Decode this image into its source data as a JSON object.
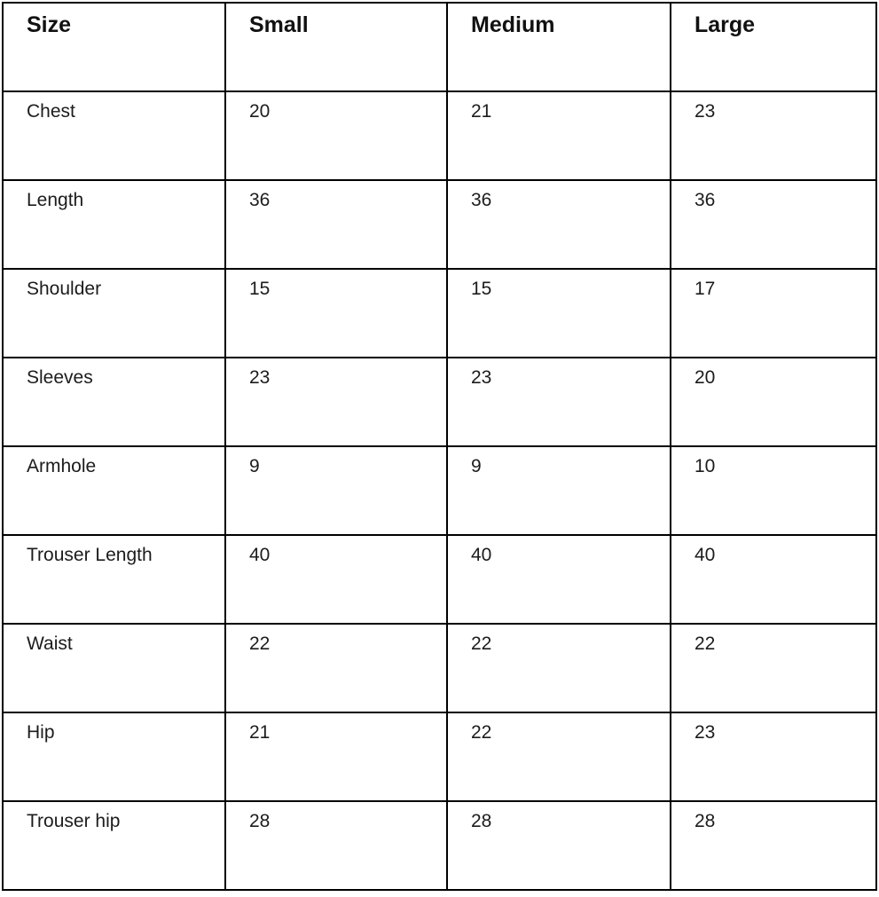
{
  "table": {
    "columns": [
      "Size",
      "Small",
      "Medium",
      "Large"
    ],
    "rows": [
      {
        "label": "Chest",
        "values": [
          "20",
          "21",
          "23"
        ]
      },
      {
        "label": "Length",
        "values": [
          "36",
          "36",
          "36"
        ]
      },
      {
        "label": "Shoulder",
        "values": [
          "15",
          "15",
          "17"
        ]
      },
      {
        "label": "Sleeves",
        "values": [
          "23",
          "23",
          "20"
        ]
      },
      {
        "label": "Armhole",
        "values": [
          "9",
          "9",
          "10"
        ]
      },
      {
        "label": "Trouser Length",
        "values": [
          "40",
          "40",
          "40"
        ]
      },
      {
        "label": "Waist",
        "values": [
          "22",
          "22",
          "22"
        ]
      },
      {
        "label": "Hip",
        "values": [
          "21",
          "22",
          "23"
        ]
      },
      {
        "label": "Trouser hip",
        "values": [
          "28",
          "28",
          "28"
        ]
      }
    ]
  }
}
